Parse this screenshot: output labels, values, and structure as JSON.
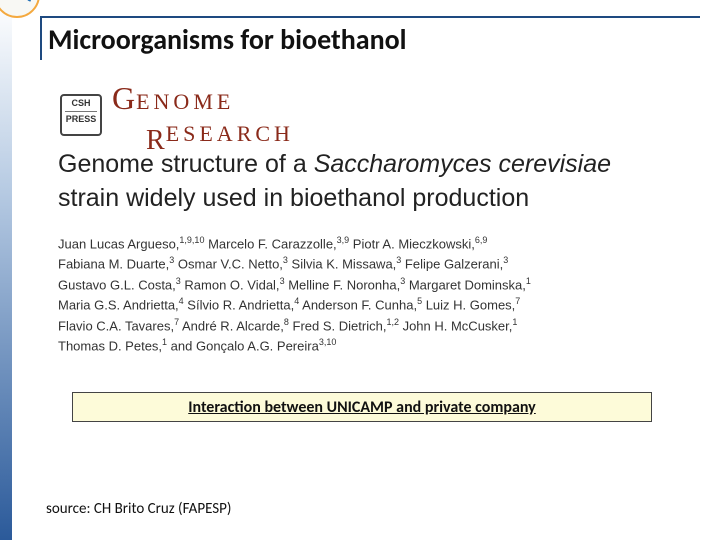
{
  "slide": {
    "title": "Microorganisms for bioethanol",
    "left_stripe_gradient": {
      "from": "#ffffff",
      "mid": "#b7cbe3",
      "to": "#2b5a9a"
    },
    "title_border_color": "#1e4a80"
  },
  "logo": {
    "ring_color": "#f4a93f",
    "arrow_color": "#1f6fb6"
  },
  "journal": {
    "press_box_lines": [
      "CSH",
      "PRESS"
    ],
    "name_part1_big": "G",
    "name_part1_rest": "ENOME",
    "name_part2_big": "R",
    "name_part2_rest": "ESEARCH",
    "brand_color": "#8a2a1a"
  },
  "article": {
    "title_prefix": "Genome structure of a ",
    "title_italic": "Saccharomyces cerevisiae",
    "title_suffix": " strain widely used in bioethanol production"
  },
  "authors_lines": [
    "Juan Lucas Argueso,<sup>1,9,10</sup> Marcelo F. Carazzolle,<sup>3,9</sup> Piotr A. Mieczkowski,<sup>6,9</sup>",
    "Fabiana M. Duarte,<sup>3</sup> Osmar V.C. Netto,<sup>3</sup> Silvia K. Missawa,<sup>3</sup> Felipe Galzerani,<sup>3</sup>",
    "Gustavo G.L. Costa,<sup>3</sup> Ramon O. Vidal,<sup>3</sup> Melline F. Noronha,<sup>3</sup> Margaret Dominska,<sup>1</sup>",
    "Maria G.S. Andrietta,<sup>4</sup> Sílvio R. Andrietta,<sup>4</sup> Anderson F. Cunha,<sup>5</sup> Luiz H. Gomes,<sup>7</sup>",
    "Flavio C.A. Tavares,<sup>7</sup> André R. Alcarde,<sup>8</sup> Fred S. Dietrich,<sup>1,2</sup> John H. McCusker,<sup>1</sup>",
    "Thomas D. Petes,<sup>1</sup> and Gonçalo A.G. Pereira<sup>3,10</sup>"
  ],
  "highlight": {
    "text": "Interaction between UNICAMP and private company",
    "bg_color": "#fdfbd9",
    "border_color": "#444444"
  },
  "source": {
    "text": "source: CH Brito Cruz (FAPESP)"
  }
}
